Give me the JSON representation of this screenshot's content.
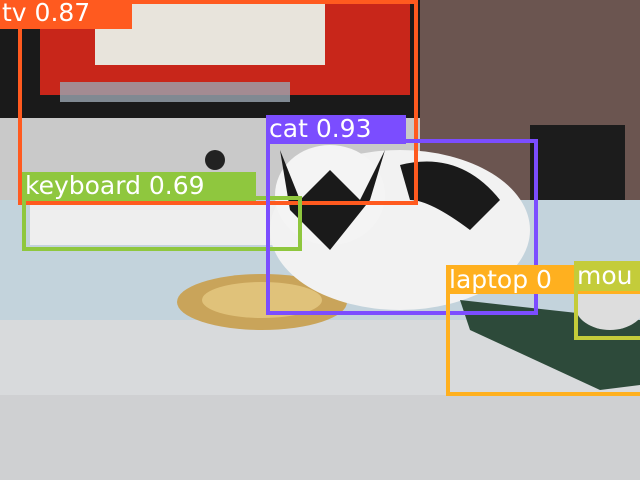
{
  "detections": [
    {
      "label": "tv 0.87"
    },
    {
      "label": "keyboard 0.69"
    },
    {
      "label": "cat 0.93"
    },
    {
      "label": "laptop 0"
    },
    {
      "label": "mou"
    }
  ]
}
